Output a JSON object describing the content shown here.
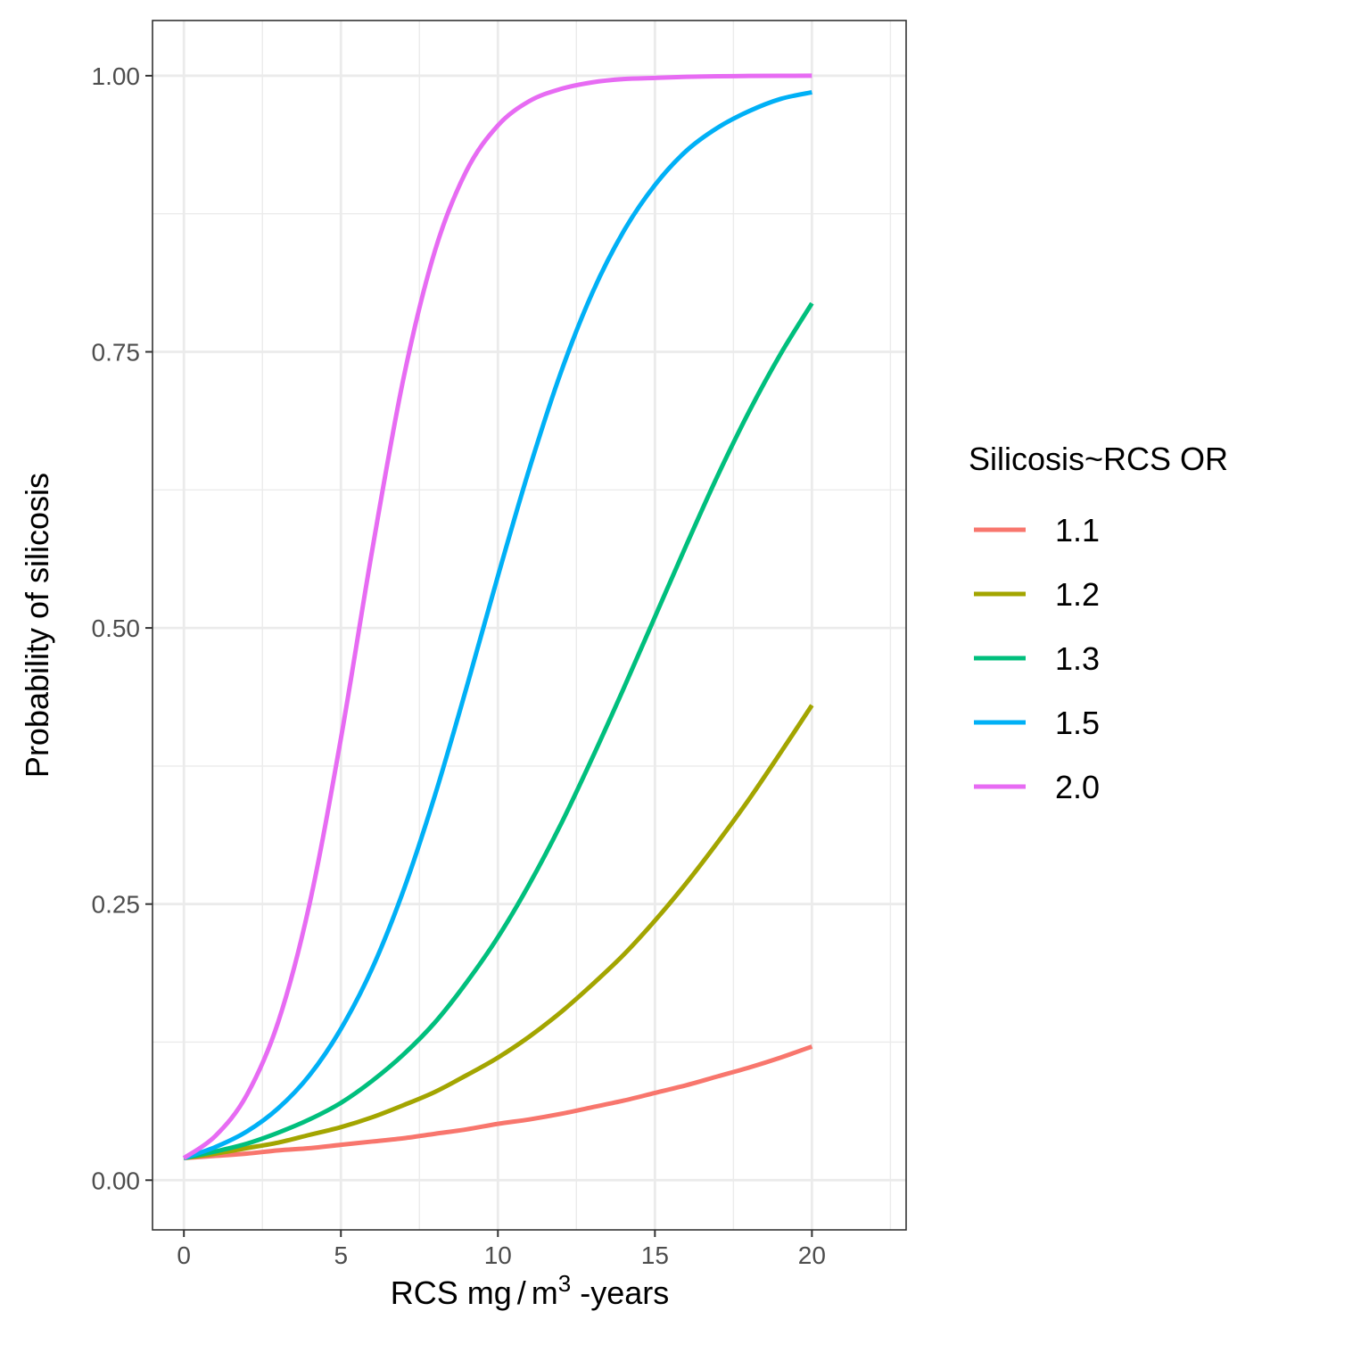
{
  "chart_data": {
    "type": "line",
    "xlabel": {
      "prefix": "RCS mg",
      "unit": "m",
      "sup": "3",
      "suffix": " -years"
    },
    "ylabel": "Probability of silicosis",
    "xlim": [
      -1.0,
      23.0
    ],
    "ylim": [
      -0.045,
      1.05
    ],
    "x_ticks": [
      0,
      5,
      10,
      15,
      20
    ],
    "x_tick_labels": [
      "0",
      "5",
      "10",
      "15",
      "20"
    ],
    "x_minor_ticks": [
      2.5,
      7.5,
      12.5,
      17.5,
      22.5
    ],
    "y_ticks": [
      0,
      0.25,
      0.5,
      0.75,
      1.0
    ],
    "y_tick_labels": [
      "0.00",
      "0.25",
      "0.50",
      "0.75",
      "1.00"
    ],
    "y_minor_ticks": [
      0.125,
      0.375,
      0.625,
      0.875
    ],
    "grid": true,
    "legend": {
      "title": "Silicosis~RCS OR",
      "position": "right"
    },
    "x": [
      0,
      1,
      2,
      3,
      4,
      5,
      6,
      7,
      8,
      9,
      10,
      11,
      12,
      13,
      14,
      15,
      16,
      17,
      18,
      19,
      20
    ],
    "series": [
      {
        "name": "1.1",
        "color": "#F8766D",
        "values": [
          0.02,
          0.022,
          0.024,
          0.027,
          0.029,
          0.032,
          0.035,
          0.038,
          0.042,
          0.046,
          0.051,
          0.055,
          0.06,
          0.066,
          0.072,
          0.079,
          0.086,
          0.094,
          0.102,
          0.111,
          0.121
        ]
      },
      {
        "name": "1.2",
        "color": "#A3A500",
        "values": [
          0.02,
          0.024,
          0.029,
          0.034,
          0.041,
          0.048,
          0.057,
          0.068,
          0.08,
          0.095,
          0.111,
          0.13,
          0.152,
          0.177,
          0.204,
          0.235,
          0.269,
          0.306,
          0.345,
          0.387,
          0.43
        ]
      },
      {
        "name": "1.3",
        "color": "#00BF7D",
        "values": [
          0.02,
          0.026,
          0.033,
          0.043,
          0.055,
          0.07,
          0.09,
          0.114,
          0.143,
          0.179,
          0.22,
          0.268,
          0.322,
          0.382,
          0.445,
          0.51,
          0.575,
          0.638,
          0.696,
          0.748,
          0.794
        ]
      },
      {
        "name": "1.5",
        "color": "#00B0F6",
        "values": [
          0.02,
          0.03,
          0.044,
          0.065,
          0.095,
          0.137,
          0.192,
          0.263,
          0.349,
          0.446,
          0.547,
          0.644,
          0.731,
          0.803,
          0.859,
          0.901,
          0.932,
          0.953,
          0.968,
          0.979,
          0.985
        ]
      },
      {
        "name": "2.0",
        "color": "#E76BF3",
        "values": [
          0.02,
          0.04,
          0.077,
          0.143,
          0.25,
          0.4,
          0.571,
          0.727,
          0.842,
          0.914,
          0.955,
          0.977,
          0.988,
          0.994,
          0.997,
          0.998,
          0.999,
          0.9995,
          0.9998,
          0.9999,
          1.0
        ]
      }
    ]
  }
}
